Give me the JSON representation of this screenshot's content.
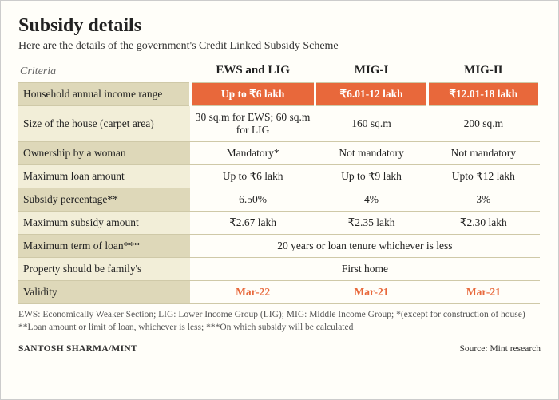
{
  "title": "Subsidy details",
  "subtitle": "Here are the details of the government's Credit Linked Subsidy Scheme",
  "criteria_label": "Criteria",
  "columns": [
    "EWS and LIG",
    "MIG-I",
    "MIG-II"
  ],
  "rows": {
    "income": {
      "label": "Household annual income range",
      "v": [
        "Up to ₹6 lakh",
        "₹6.01-12 lakh",
        "₹12.01-18 lakh"
      ]
    },
    "size": {
      "label": "Size of the house (carpet area)",
      "v": [
        "30 sq.m for EWS; 60 sq.m for LIG",
        "160 sq.m",
        "200 sq.m"
      ]
    },
    "owner": {
      "label": "Ownership by a woman",
      "v": [
        "Mandatory*",
        "Not mandatory",
        "Not mandatory"
      ]
    },
    "maxloan": {
      "label": "Maximum loan amount",
      "v": [
        "Up to ₹6 lakh",
        "Up to ₹9 lakh",
        "Upto ₹12 lakh"
      ]
    },
    "pct": {
      "label": "Subsidy percentage**",
      "v": [
        "6.50%",
        "4%",
        "3%"
      ]
    },
    "maxsub": {
      "label": "Maximum subsidy amount",
      "v": [
        "₹2.67 lakh",
        "₹2.35 lakh",
        "₹2.30 lakh"
      ]
    },
    "term": {
      "label": "Maximum term of loan***",
      "span": "20 years or loan tenure whichever is less"
    },
    "prop": {
      "label": "Property should be family's",
      "span": "First home"
    },
    "validity": {
      "label": "Validity",
      "v": [
        "Mar-22",
        "Mar-21",
        "Mar-21"
      ]
    }
  },
  "footnote": "EWS: Economically Weaker Section; LIG: Lower Income Group (LIG); MIG: Middle Income Group; *(except for construction of house) **Loan amount or limit of loan, whichever is less; ***On which subsidy will be calculated",
  "credit": "SANTOSH SHARMA/MINT",
  "source": "Source: Mint research",
  "colors": {
    "accent": "#e8683b",
    "band_dark": "#ded8b9",
    "band_light": "#f2eed8",
    "background": "#fffef9"
  }
}
